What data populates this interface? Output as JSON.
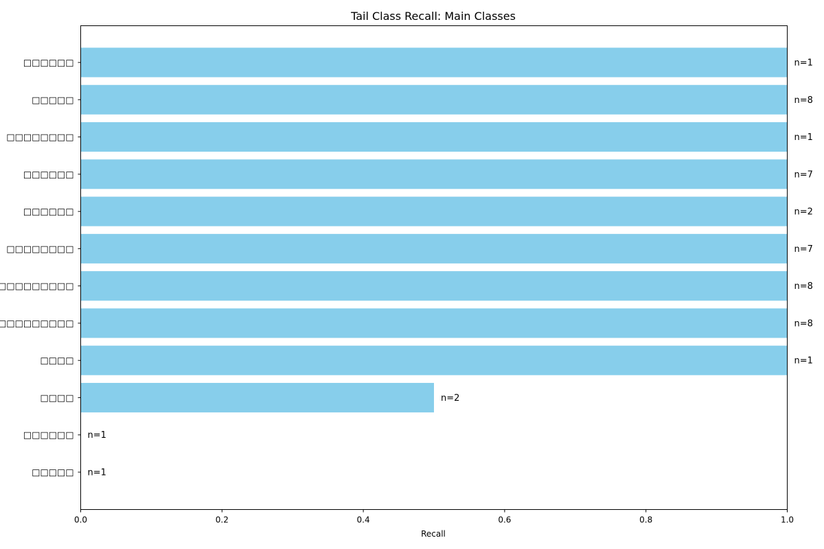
{
  "chart_data": {
    "type": "bar",
    "orientation": "horizontal",
    "title": "Tail Class Recall: Main Classes",
    "xlabel": "Recall",
    "ylabel": "",
    "xlim": [
      0,
      1
    ],
    "xticks": [
      "0.0",
      "0.2",
      "0.4",
      "0.6",
      "0.8",
      "1.0"
    ],
    "bar_color": "#87ceeb",
    "grid": false,
    "legend": "none",
    "categories": [
      "□□□□□□",
      "□□□□□",
      "□□□□□□□□",
      "□□□□□□",
      "□□□□□□",
      "□□□□□□□□",
      "□□□□□□□□□",
      "□□□□□□□□□□□",
      "□□□□",
      "□□□□",
      "□□□□□□",
      "□□□□□"
    ],
    "values": [
      1.0,
      1.0,
      1.0,
      1.0,
      1.0,
      1.0,
      1.0,
      1.0,
      1.0,
      0.5,
      0.0,
      0.0
    ],
    "bar_labels": [
      "n=1",
      "n=8",
      "n=1",
      "n=7",
      "n=2",
      "n=7",
      "n=8",
      "n=8",
      "n=1",
      "n=2",
      "n=1",
      "n=1"
    ]
  }
}
